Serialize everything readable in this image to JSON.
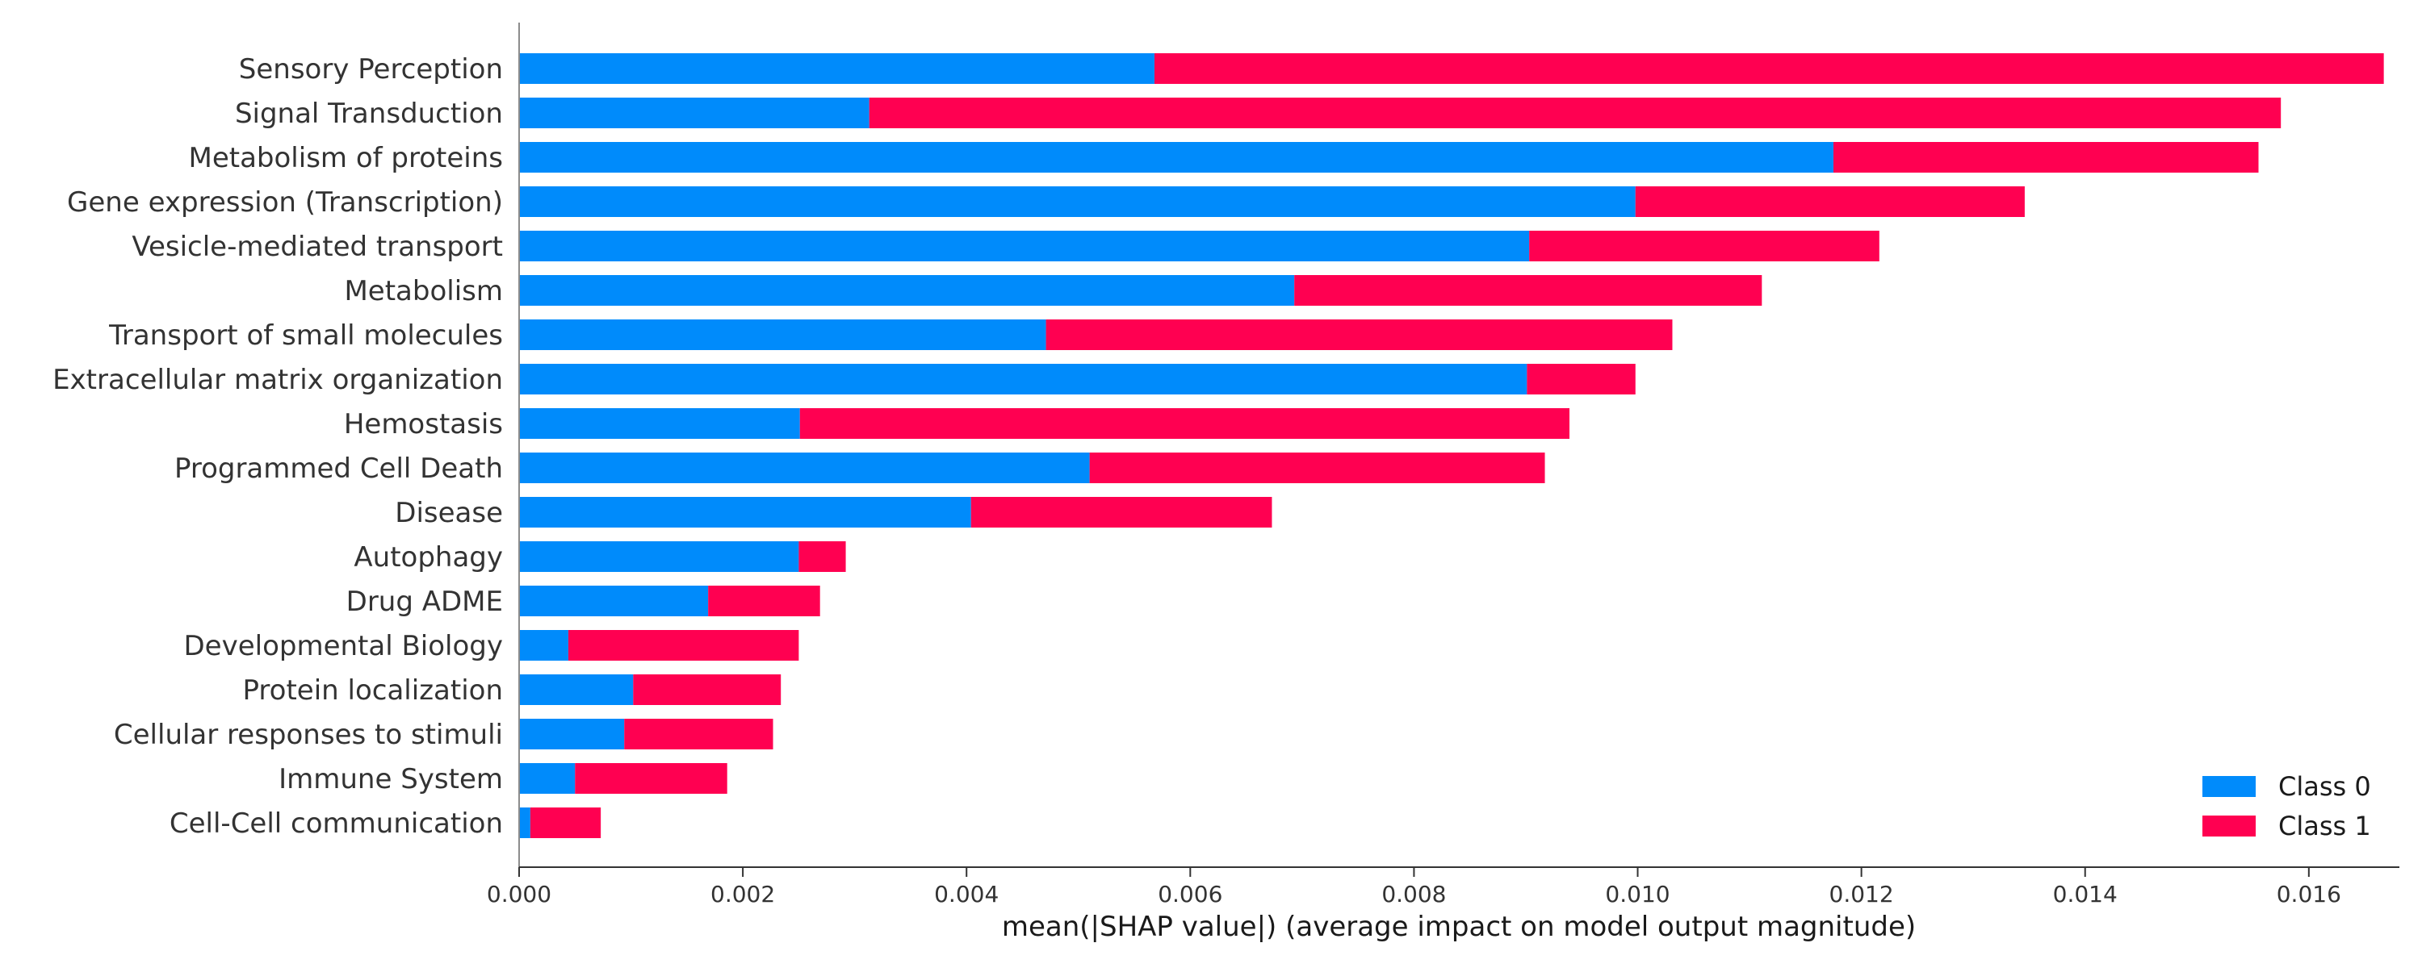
{
  "chart_data": {
    "type": "bar",
    "orientation": "horizontal",
    "stacked": true,
    "title": "",
    "xlabel": "mean(|SHAP value|) (average impact on model output magnitude)",
    "ylabel": "",
    "xlim": [
      0,
      0.0175
    ],
    "xticks": [
      0.0,
      0.002,
      0.004,
      0.006,
      0.008,
      0.01,
      0.012,
      0.014,
      0.016
    ],
    "xtick_labels": [
      "0.000",
      "0.002",
      "0.004",
      "0.006",
      "0.008",
      "0.010",
      "0.012",
      "0.014",
      "0.016"
    ],
    "grid": false,
    "legend_position": "bottom-right",
    "categories": [
      "Sensory Perception",
      "Signal Transduction",
      "Metabolism of proteins",
      "Gene expression (Transcription)",
      "Vesicle-mediated transport",
      "Metabolism",
      "Transport of small molecules",
      "Extracellular matrix organization",
      "Hemostasis",
      "Programmed Cell Death",
      "Disease",
      "Autophagy",
      "Drug ADME",
      "Developmental Biology",
      "Protein localization",
      "Cellular responses to stimuli",
      "Immune System",
      "Cell-Cell communication"
    ],
    "series": [
      {
        "name": "Class 0",
        "color": "#008bfb",
        "values": [
          0.00568,
          0.00313,
          0.01175,
          0.00998,
          0.00903,
          0.00693,
          0.00471,
          0.00901,
          0.00251,
          0.0051,
          0.00404,
          0.0025,
          0.00169,
          0.00044,
          0.00102,
          0.00094,
          0.0005,
          0.0001
        ]
      },
      {
        "name": "Class 1",
        "color": "#ff0051",
        "values": [
          0.01099,
          0.01262,
          0.0038,
          0.00348,
          0.00313,
          0.00418,
          0.0056,
          0.00097,
          0.00688,
          0.00407,
          0.00269,
          0.00042,
          0.001,
          0.00206,
          0.00132,
          0.00133,
          0.00136,
          0.00063
        ]
      }
    ]
  }
}
